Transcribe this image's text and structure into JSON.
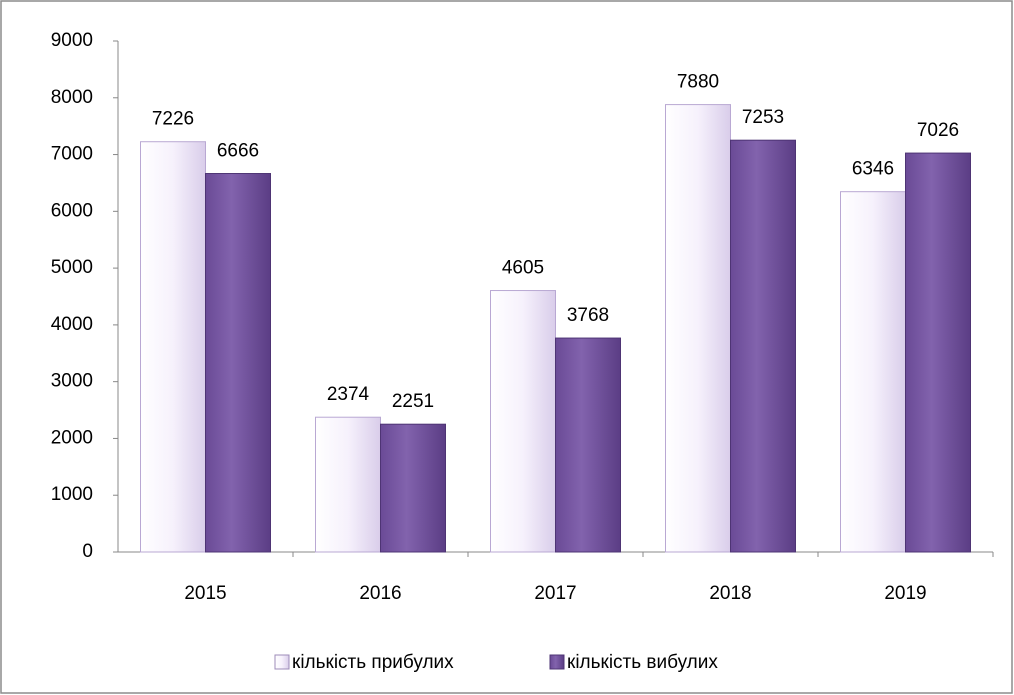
{
  "chart_data": {
    "type": "bar",
    "categories": [
      "2015",
      "2016",
      "2017",
      "2018",
      "2019"
    ],
    "series": [
      {
        "name": "кількість прибулих",
        "color": "#f1ebf9",
        "values": [
          7226,
          2374,
          4605,
          7880,
          6346
        ]
      },
      {
        "name": "кількість вибулих",
        "color": "#7b5aa6",
        "values": [
          6666,
          2251,
          3768,
          7253,
          7026
        ]
      }
    ],
    "ylim": [
      0,
      9000
    ],
    "yticks": [
      0,
      1000,
      2000,
      3000,
      4000,
      5000,
      6000,
      7000,
      8000,
      9000
    ],
    "grid": false,
    "legend": "bottom"
  }
}
